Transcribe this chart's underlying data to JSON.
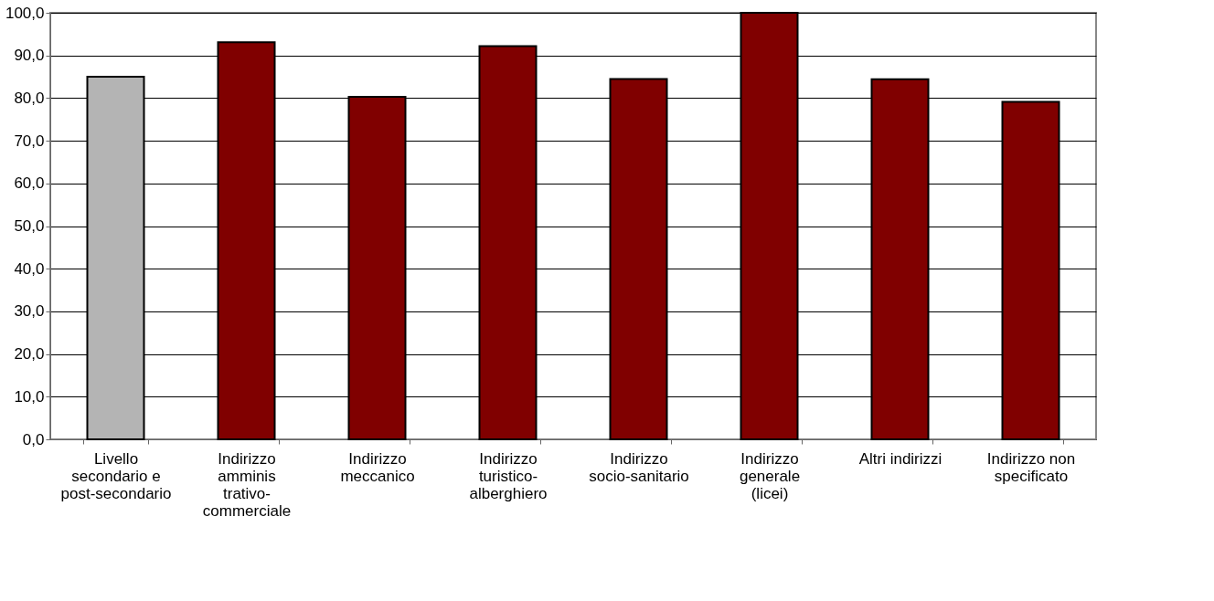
{
  "chart_data": {
    "type": "bar",
    "categories": [
      "Livello secondario e post-secondario",
      "Indirizzo amminis trativo-commerciale",
      "Indirizzo meccanico",
      "Indirizzo turistico-alberghiero",
      "Indirizzo socio-sanitario",
      "Indirizzo generale (licei)",
      "Altri indirizzi",
      "Indirizzo non specificato"
    ],
    "values": [
      85.0,
      93.1,
      80.3,
      92.2,
      84.5,
      100.0,
      84.4,
      79.1
    ],
    "colors": [
      "#b4b4b4",
      "#800000",
      "#800000",
      "#800000",
      "#800000",
      "#800000",
      "#800000",
      "#800000"
    ],
    "ylim": [
      0,
      100
    ],
    "yticks": [
      {
        "value": 0,
        "label": "0,0"
      },
      {
        "value": 10,
        "label": "10,0"
      },
      {
        "value": 20,
        "label": "20,0"
      },
      {
        "value": 30,
        "label": "30,0"
      },
      {
        "value": 40,
        "label": "40,0"
      },
      {
        "value": 50,
        "label": "50,0"
      },
      {
        "value": 60,
        "label": "60,0"
      },
      {
        "value": 70,
        "label": "70,0"
      },
      {
        "value": 80,
        "label": "80,0"
      },
      {
        "value": 90,
        "label": "90,0"
      },
      {
        "value": 100,
        "label": "100,0"
      }
    ],
    "grid": "y"
  }
}
